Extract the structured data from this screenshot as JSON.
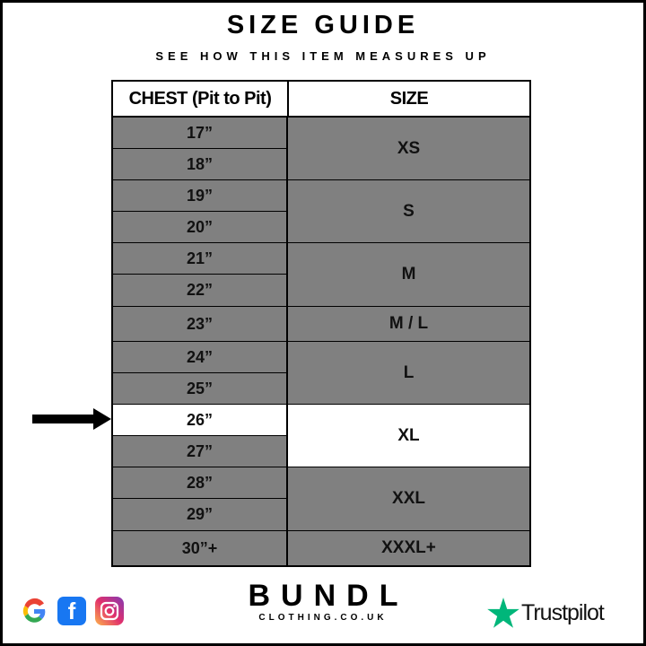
{
  "title": "SIZE GUIDE",
  "subtitle": "SEE HOW THIS ITEM MEASURES UP",
  "table": {
    "headers": [
      "CHEST (Pit to Pit)",
      "SIZE"
    ],
    "chest_rows": [
      "17”",
      "18”",
      "19”",
      "20”",
      "21”",
      "22”",
      "23”",
      "24”",
      "25”",
      "26”",
      "27”",
      "28”",
      "29”",
      "30”+"
    ],
    "size_groups": [
      {
        "label": "XS",
        "span": 2
      },
      {
        "label": "S",
        "span": 2
      },
      {
        "label": "M",
        "span": 2
      },
      {
        "label": "M / L",
        "span": 1
      },
      {
        "label": "L",
        "span": 2
      },
      {
        "label": "XL",
        "span": 2
      },
      {
        "label": "XXL",
        "span": 2
      },
      {
        "label": "XXXL+",
        "span": 1
      }
    ],
    "highlighted_chest": "26”",
    "highlighted_size": "XL",
    "row_color": "#808080",
    "highlight_color": "#ffffff"
  },
  "indicator_icon": "arrow-right-icon",
  "footer": {
    "social_icons": [
      "google-icon",
      "facebook-icon",
      "instagram-icon"
    ],
    "brand": "BUNDL",
    "brand_sub": "CLOTHING.CO.UK",
    "trustpilot": "Trustpilot",
    "trustpilot_color": "#00b67a"
  }
}
